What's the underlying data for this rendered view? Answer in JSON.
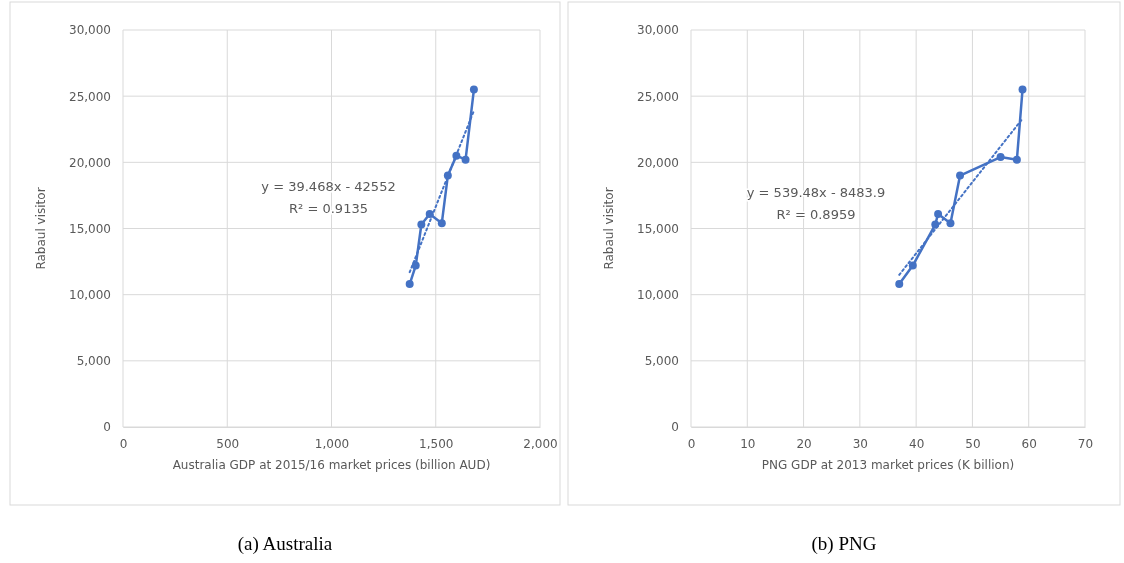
{
  "chart_data": [
    {
      "type": "line",
      "xlabel": "Australia GDP at 2015/16 market prices (billion AUD)",
      "ylabel": "Rabaul visitor",
      "marker": "circle",
      "grid": true,
      "xlim": [
        0,
        2000
      ],
      "xticks": [
        0,
        500,
        {
          "value": 1000,
          "label": "1,000"
        },
        {
          "value": 1500,
          "label": "1,500"
        },
        {
          "value": 2000,
          "label": "2,000"
        }
      ],
      "ylim": [
        0,
        30000
      ],
      "yticks": [
        0,
        {
          "value": 5000,
          "label": "5,000"
        },
        {
          "value": 10000,
          "label": "10,000"
        },
        {
          "value": 15000,
          "label": "15,000"
        },
        {
          "value": 20000,
          "label": "20,000"
        },
        {
          "value": 25000,
          "label": "25,000"
        },
        {
          "value": 30000,
          "label": "30,000"
        }
      ],
      "series": [
        {
          "color": "#4472c4",
          "x": [
            1375,
            1404,
            1431,
            1471,
            1529,
            1558,
            1599,
            1643,
            1683
          ],
          "values": [
            10800,
            12200,
            15300,
            16100,
            15400,
            19000,
            20500,
            20200,
            25500
          ]
        },
        {
          "type": "line",
          "color": "#4472c4",
          "line_style": "dotted",
          "marker": "none",
          "x": [
            1375,
            1683
          ],
          "values": [
            11700,
            23900
          ]
        }
      ],
      "annotations": [
        "y = 39.468x - 42552",
        "R² = 0.9135",
        "(a) Australia"
      ]
    },
    {
      "type": "line",
      "xlabel": "PNG GDP at 2013 market prices (K billion)",
      "ylabel": "Rabaul visitor",
      "marker": "circle",
      "grid": true,
      "xlim": [
        0,
        70
      ],
      "xticks": [
        0,
        10,
        20,
        30,
        40,
        50,
        60,
        70
      ],
      "ylim": [
        0,
        30000
      ],
      "yticks": [
        0,
        {
          "value": 5000,
          "label": "5,000"
        },
        {
          "value": 10000,
          "label": "10,000"
        },
        {
          "value": 15000,
          "label": "15,000"
        },
        {
          "value": 20000,
          "label": "20,000"
        },
        {
          "value": 25000,
          "label": "25,000"
        },
        {
          "value": 30000,
          "label": "30,000"
        }
      ],
      "series": [
        {
          "color": "#4472c4",
          "x": [
            37.0,
            39.4,
            43.4,
            43.9,
            46.1,
            47.8,
            55.0,
            57.9,
            58.9
          ],
          "values": [
            10800,
            12200,
            15300,
            16100,
            15400,
            19000,
            20400,
            20200,
            25500
          ]
        },
        {
          "type": "line",
          "color": "#4472c4",
          "line_style": "dotted",
          "marker": "none",
          "x": [
            37.0,
            58.9
          ],
          "values": [
            11500,
            23300
          ]
        }
      ],
      "annotations": [
        "y = 539.48x - 8483.9",
        "R² = 0.8959",
        "(b) PNG"
      ]
    }
  ]
}
